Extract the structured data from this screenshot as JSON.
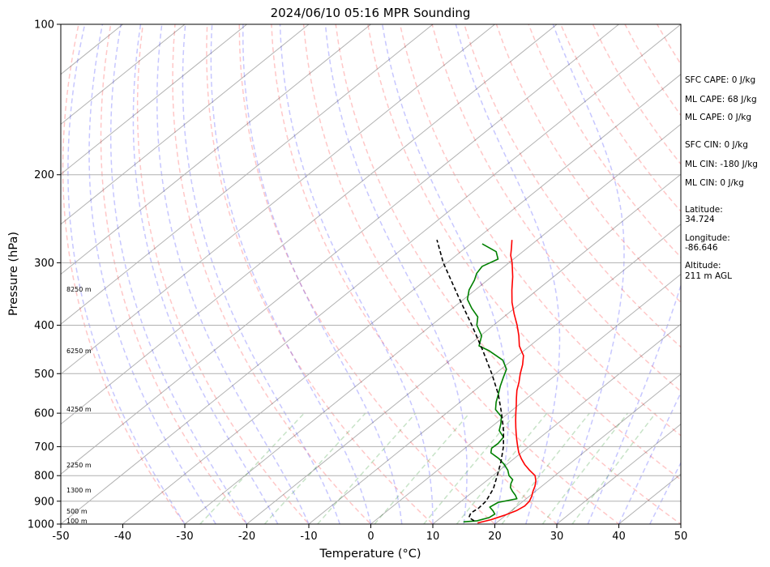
{
  "chart_data": {
    "type": "line",
    "title": "2024/06/10 05:16 MPR Sounding",
    "xlabel": "Temperature (°C)",
    "ylabel": "Pressure (hPa)",
    "xlim": [
      -50,
      50
    ],
    "ylim": [
      1000,
      100
    ],
    "y_scale": "log",
    "x_ticks": [
      -50,
      -40,
      -30,
      -20,
      -10,
      0,
      10,
      20,
      30,
      40,
      50
    ],
    "y_ticks": [
      1000,
      900,
      800,
      700,
      600,
      500,
      400,
      300,
      200,
      100
    ],
    "grid": "horizontal",
    "background_lines": [
      "skewed isotherms",
      "dry adiabats",
      "moist adiabats",
      "mixing ratio lines"
    ],
    "series": [
      {
        "role": "temperature",
        "color": "#ff0000",
        "points": [
          [
            995,
            17.0
          ],
          [
            980,
            18.5
          ],
          [
            960,
            19.8
          ],
          [
            940,
            20.8
          ],
          [
            920,
            21.2
          ],
          [
            900,
            21.0
          ],
          [
            880,
            20.4
          ],
          [
            860,
            19.6
          ],
          [
            840,
            18.9
          ],
          [
            820,
            18.0
          ],
          [
            800,
            16.8
          ],
          [
            780,
            14.8
          ],
          [
            760,
            12.9
          ],
          [
            740,
            11.2
          ],
          [
            720,
            9.6
          ],
          [
            700,
            8.2
          ],
          [
            680,
            6.8
          ],
          [
            660,
            5.4
          ],
          [
            640,
            4.0
          ],
          [
            620,
            2.6
          ],
          [
            600,
            1.2
          ],
          [
            580,
            -0.2
          ],
          [
            560,
            -1.7
          ],
          [
            540,
            -3.2
          ],
          [
            520,
            -4.5
          ],
          [
            500,
            -6.0
          ],
          [
            480,
            -7.4
          ],
          [
            460,
            -9.1
          ],
          [
            450,
            -10.4
          ],
          [
            440,
            -11.7
          ],
          [
            420,
            -13.8
          ],
          [
            400,
            -16.2
          ],
          [
            380,
            -18.9
          ],
          [
            360,
            -21.6
          ],
          [
            340,
            -24.1
          ],
          [
            320,
            -26.6
          ],
          [
            300,
            -29.5
          ],
          [
            290,
            -31.2
          ],
          [
            280,
            -32.6
          ],
          [
            270,
            -34.1
          ]
        ]
      },
      {
        "role": "dewpoint",
        "color": "#008000",
        "points": [
          [
            990,
            14.5
          ],
          [
            985,
            16.5
          ],
          [
            970,
            17.8
          ],
          [
            955,
            18.0
          ],
          [
            940,
            17.0
          ],
          [
            925,
            15.8
          ],
          [
            905,
            16.2
          ],
          [
            890,
            18.5
          ],
          [
            875,
            17.5
          ],
          [
            860,
            16.3
          ],
          [
            845,
            15.2
          ],
          [
            830,
            14.5
          ],
          [
            815,
            14.0
          ],
          [
            800,
            12.6
          ],
          [
            780,
            11.3
          ],
          [
            760,
            9.6
          ],
          [
            740,
            7.6
          ],
          [
            720,
            5.1
          ],
          [
            705,
            4.3
          ],
          [
            690,
            4.4
          ],
          [
            670,
            4.0
          ],
          [
            650,
            2.0
          ],
          [
            630,
            0.9
          ],
          [
            610,
            -0.4
          ],
          [
            590,
            -2.8
          ],
          [
            570,
            -4.2
          ],
          [
            550,
            -5.4
          ],
          [
            530,
            -6.7
          ],
          [
            510,
            -7.9
          ],
          [
            490,
            -9.1
          ],
          [
            470,
            -11.5
          ],
          [
            450,
            -15.6
          ],
          [
            440,
            -18.2
          ],
          [
            420,
            -19.8
          ],
          [
            400,
            -22.7
          ],
          [
            385,
            -24.2
          ],
          [
            370,
            -26.9
          ],
          [
            355,
            -29.4
          ],
          [
            340,
            -31.0
          ],
          [
            325,
            -32.1
          ],
          [
            315,
            -33.1
          ],
          [
            305,
            -33.6
          ],
          [
            295,
            -32.5
          ],
          [
            285,
            -34.3
          ],
          [
            275,
            -38.1
          ]
        ]
      },
      {
        "role": "parcel",
        "color": "#000000",
        "style": "dashed",
        "points": [
          [
            985,
            16.0
          ],
          [
            970,
            14.5
          ],
          [
            950,
            13.9
          ],
          [
            930,
            14.2
          ],
          [
            900,
            14.0
          ],
          [
            850,
            12.7
          ],
          [
            800,
            10.7
          ],
          [
            750,
            8.5
          ],
          [
            700,
            5.9
          ],
          [
            650,
            2.7
          ],
          [
            600,
            -1.1
          ],
          [
            550,
            -5.4
          ],
          [
            500,
            -10.6
          ],
          [
            450,
            -16.6
          ],
          [
            400,
            -23.5
          ],
          [
            350,
            -31.5
          ],
          [
            300,
            -40.6
          ],
          [
            270,
            -46.2
          ]
        ]
      }
    ]
  },
  "height_labels": [
    "8250 m",
    "6250 m",
    "4250 m",
    "2250 m",
    "1300 m",
    "500 m",
    "100 m"
  ],
  "side_info": {
    "sfc_cape": "SFC CAPE: 0 J/kg",
    "ml_cape_1": "ML CAPE: 68 J/kg",
    "ml_cape_2": "ML CAPE: 0 J/kg",
    "sfc_cin": "SFC CIN: 0 J/kg",
    "ml_cin_1": "ML CIN: -180 J/kg",
    "ml_cin_2": "ML CIN: 0 J/kg",
    "latitude_label": "Latitude:",
    "latitude_value": "34.724",
    "longitude_label": "Longitude:",
    "longitude_value": "-86.646",
    "altitude_label": "Altitude:",
    "altitude_value": "211 m AGL"
  }
}
